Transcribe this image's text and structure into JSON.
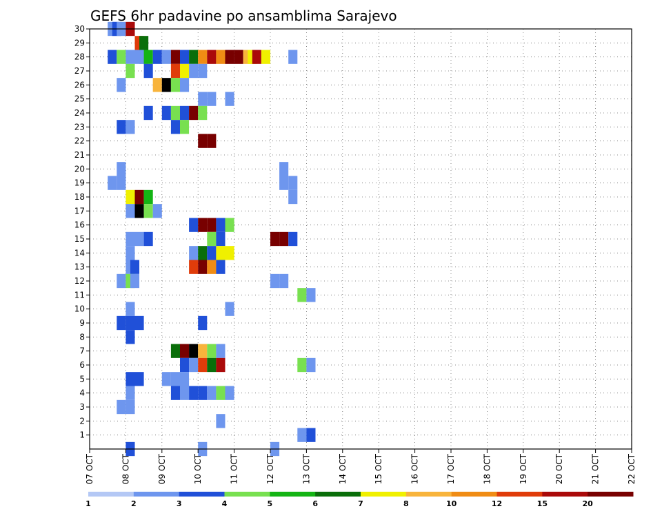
{
  "chart_data": {
    "type": "heatmap",
    "title": "GEFS 6hr padavine po ansamblima Sarajevo",
    "xlabel": "",
    "ylabel": "",
    "x_unit": "6-hour step",
    "x_ticks": [
      "07 OCT",
      "08 OCT",
      "09 OCT",
      "10 OCT",
      "11 OCT",
      "12 OCT",
      "13 OCT",
      "14 OCT",
      "15 OCT",
      "16 OCT",
      "17 OCT",
      "18 OCT",
      "19 OCT",
      "20 OCT",
      "21 OCT",
      "22 OCT"
    ],
    "y_ticks": [
      "1",
      "2",
      "3",
      "4",
      "5",
      "6",
      "7",
      "8",
      "9",
      "10",
      "11",
      "12",
      "13",
      "14",
      "15",
      "16",
      "17",
      "18",
      "19",
      "20",
      "21",
      "22",
      "23",
      "24",
      "25",
      "26",
      "27",
      "28",
      "29",
      "30"
    ],
    "ylim": [
      0,
      30
    ],
    "grid": true,
    "legend_placement": "bottom",
    "colorbar": {
      "labels": [
        "1",
        "2",
        "3",
        "4",
        "5",
        "6",
        "7",
        "8",
        "10",
        "12",
        "15",
        "20"
      ],
      "colors": [
        "#b4c8f5",
        "#6e96ee",
        "#2050d8",
        "#78e050",
        "#14b414",
        "#0a6e0a",
        "#f0f000",
        "#f8b43c",
        "#f08c14",
        "#e03c0a",
        "#aa0a0a",
        "#780000"
      ]
    },
    "cells": [
      [
        30,
        2,
        1
      ],
      [
        30,
        2.5,
        2
      ],
      [
        30,
        3,
        1
      ],
      [
        30,
        4,
        10
      ],
      [
        29,
        5,
        9
      ],
      [
        29,
        5.5,
        5
      ],
      [
        28,
        2,
        2
      ],
      [
        28,
        3,
        3
      ],
      [
        28,
        4,
        1
      ],
      [
        28,
        5,
        1
      ],
      [
        28,
        5.5,
        1
      ],
      [
        28,
        6,
        4
      ],
      [
        28,
        7,
        2
      ],
      [
        28,
        8,
        1
      ],
      [
        28,
        9,
        11
      ],
      [
        28,
        10,
        2
      ],
      [
        28,
        11,
        5
      ],
      [
        28,
        12,
        8
      ],
      [
        28,
        13,
        10
      ],
      [
        28,
        14,
        8
      ],
      [
        28,
        15,
        11
      ],
      [
        28,
        16,
        11
      ],
      [
        28,
        17,
        7
      ],
      [
        28,
        17.5,
        6
      ],
      [
        28,
        18,
        10
      ],
      [
        28,
        19,
        6
      ],
      [
        28,
        22,
        1
      ],
      [
        27,
        4,
        3
      ],
      [
        27,
        6,
        2
      ],
      [
        27,
        9,
        9
      ],
      [
        27,
        10,
        6
      ],
      [
        27,
        11,
        1
      ],
      [
        27,
        12,
        1
      ],
      [
        26,
        3,
        1
      ],
      [
        26,
        7,
        7
      ],
      [
        26,
        8,
        12
      ],
      [
        26,
        9,
        3
      ],
      [
        26,
        10,
        1
      ],
      [
        25,
        12,
        1
      ],
      [
        25,
        13,
        1
      ],
      [
        25,
        15,
        1
      ],
      [
        24,
        6,
        2
      ],
      [
        24,
        8,
        2
      ],
      [
        24,
        9,
        3
      ],
      [
        24,
        10,
        2
      ],
      [
        24,
        11,
        11
      ],
      [
        24,
        12,
        3
      ],
      [
        23,
        3,
        2
      ],
      [
        23,
        4,
        1
      ],
      [
        23,
        9,
        2
      ],
      [
        23,
        10,
        3
      ],
      [
        22,
        12,
        11
      ],
      [
        22,
        13,
        11
      ],
      [
        20,
        3,
        1
      ],
      [
        20,
        21,
        1
      ],
      [
        19,
        2,
        1
      ],
      [
        19,
        3,
        1
      ],
      [
        19,
        21,
        1
      ],
      [
        19,
        22,
        1
      ],
      [
        18,
        4,
        6
      ],
      [
        18,
        5,
        11
      ],
      [
        18,
        6,
        4
      ],
      [
        18,
        22,
        1
      ],
      [
        17,
        4,
        1
      ],
      [
        17,
        5,
        12
      ],
      [
        17,
        6,
        3
      ],
      [
        17,
        7,
        1
      ],
      [
        16,
        11,
        2
      ],
      [
        16,
        12,
        11
      ],
      [
        16,
        13,
        11
      ],
      [
        16,
        14,
        2
      ],
      [
        16,
        15,
        3
      ],
      [
        15,
        4,
        1
      ],
      [
        15,
        5,
        1
      ],
      [
        15,
        6,
        2
      ],
      [
        15,
        13,
        3
      ],
      [
        15,
        14,
        2
      ],
      [
        15,
        20,
        11
      ],
      [
        15,
        21,
        11
      ],
      [
        15,
        22,
        2
      ],
      [
        14,
        4,
        1
      ],
      [
        14,
        11,
        1
      ],
      [
        14,
        12,
        5
      ],
      [
        14,
        13,
        2
      ],
      [
        14,
        14,
        6
      ],
      [
        14,
        15,
        6
      ],
      [
        13,
        4,
        1
      ],
      [
        13,
        4.5,
        2
      ],
      [
        13,
        11,
        9
      ],
      [
        13,
        12,
        11
      ],
      [
        13,
        13,
        8
      ],
      [
        13,
        14,
        2
      ],
      [
        12,
        3,
        1
      ],
      [
        12,
        4,
        3
      ],
      [
        12,
        4.5,
        1
      ],
      [
        12,
        20,
        1
      ],
      [
        12,
        21,
        1
      ],
      [
        11,
        23,
        3
      ],
      [
        11,
        24,
        1
      ],
      [
        10,
        4,
        1
      ],
      [
        10,
        15,
        1
      ],
      [
        9,
        3,
        2
      ],
      [
        9,
        4,
        2
      ],
      [
        9,
        5,
        2
      ],
      [
        9,
        12,
        2
      ],
      [
        8,
        4,
        2
      ],
      [
        7,
        9,
        5
      ],
      [
        7,
        10,
        11
      ],
      [
        7,
        11,
        12
      ],
      [
        7,
        12,
        7
      ],
      [
        7,
        13,
        3
      ],
      [
        7,
        14,
        1
      ],
      [
        6,
        10,
        2
      ],
      [
        6,
        11,
        1
      ],
      [
        6,
        12,
        9
      ],
      [
        6,
        13,
        5
      ],
      [
        6,
        14,
        10
      ],
      [
        6,
        23,
        3
      ],
      [
        6,
        24,
        1
      ],
      [
        5,
        4,
        2
      ],
      [
        5,
        5,
        2
      ],
      [
        5,
        8,
        1
      ],
      [
        5,
        9,
        1
      ],
      [
        5,
        10,
        1
      ],
      [
        4,
        4,
        1
      ],
      [
        4,
        9,
        2
      ],
      [
        4,
        10,
        1
      ],
      [
        4,
        11,
        2
      ],
      [
        4,
        12,
        2
      ],
      [
        4,
        13,
        1
      ],
      [
        4,
        14,
        3
      ],
      [
        4,
        15,
        1
      ],
      [
        3,
        3,
        1
      ],
      [
        3,
        4,
        1
      ],
      [
        2,
        14,
        1
      ],
      [
        1,
        23,
        1
      ],
      [
        1,
        24,
        2
      ],
      [
        0,
        4,
        2
      ],
      [
        0,
        12,
        1
      ],
      [
        0,
        20,
        1
      ]
    ]
  }
}
